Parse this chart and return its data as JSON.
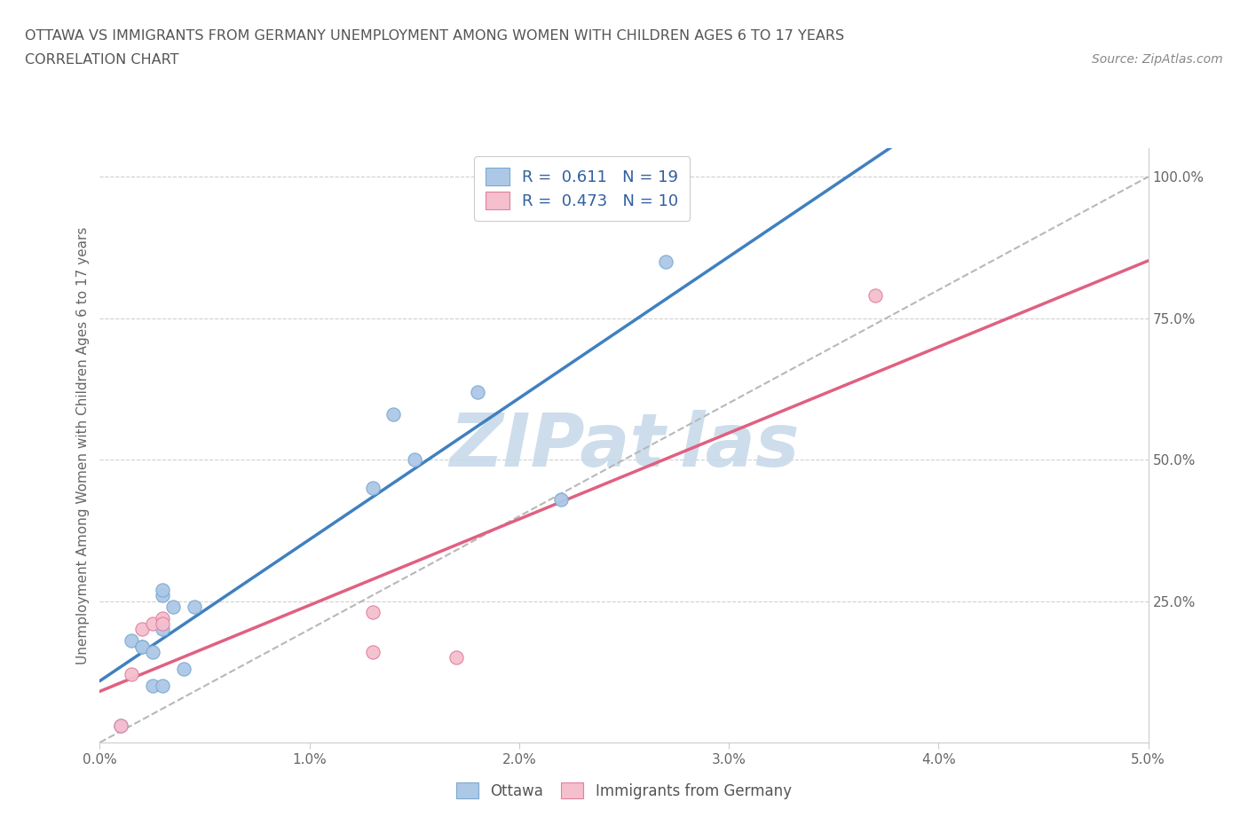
{
  "title_line1": "OTTAWA VS IMMIGRANTS FROM GERMANY UNEMPLOYMENT AMONG WOMEN WITH CHILDREN AGES 6 TO 17 YEARS",
  "title_line2": "CORRELATION CHART",
  "source_text": "Source: ZipAtlas.com",
  "ylabel": "Unemployment Among Women with Children Ages 6 to 17 years",
  "xlim": [
    0.0,
    5.0
  ],
  "ylim": [
    0.0,
    105.0
  ],
  "xtick_labels": [
    "0.0%",
    "1.0%",
    "2.0%",
    "3.0%",
    "4.0%",
    "5.0%"
  ],
  "xtick_vals": [
    0.0,
    1.0,
    2.0,
    3.0,
    4.0,
    5.0
  ],
  "ytick_labels": [
    "25.0%",
    "50.0%",
    "75.0%",
    "100.0%"
  ],
  "ytick_vals": [
    25.0,
    50.0,
    75.0,
    100.0
  ],
  "ottawa_color": "#adc8e6",
  "ottawa_edge_color": "#7aaad0",
  "immigrants_color": "#f5bfce",
  "immigrants_edge_color": "#e080a0",
  "trend_ottawa_color": "#4080c0",
  "trend_immigrants_color": "#e06080",
  "trend_dash_color": "#b8b8b8",
  "title_color": "#555555",
  "source_color": "#888888",
  "watermark_color": "#c8daea",
  "r_n_color": "#3060a0",
  "legend_box_color": "#adc8e6",
  "legend_box2_color": "#f5bfce",
  "ottawa_x": [
    0.1,
    0.15,
    0.2,
    0.2,
    0.25,
    0.25,
    0.3,
    0.3,
    0.3,
    0.3,
    0.35,
    0.4,
    0.45,
    1.3,
    1.4,
    1.5,
    1.8,
    2.2,
    2.7
  ],
  "ottawa_y": [
    3.0,
    18.0,
    17.0,
    17.0,
    10.0,
    16.0,
    10.0,
    20.0,
    26.0,
    27.0,
    24.0,
    13.0,
    24.0,
    45.0,
    58.0,
    50.0,
    62.0,
    43.0,
    85.0
  ],
  "immigrants_x": [
    0.1,
    0.15,
    0.2,
    0.25,
    0.3,
    0.3,
    1.3,
    1.3,
    1.7,
    3.7
  ],
  "immigrants_y": [
    3.0,
    12.0,
    20.0,
    21.0,
    22.0,
    21.0,
    23.0,
    16.0,
    15.0,
    79.0
  ],
  "legend_r_ottawa": "R =  0.611   N = 19",
  "legend_r_immigrants": "R =  0.473   N = 10",
  "marker_size": 120,
  "background_color": "#ffffff",
  "grid_color": "#d0d0d0"
}
